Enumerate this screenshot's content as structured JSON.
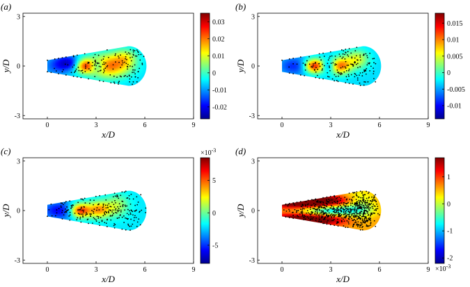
{
  "colors": {
    "jet": [
      "#00008f",
      "#0000ff",
      "#0080ff",
      "#00ffff",
      "#80ff80",
      "#ffff00",
      "#ff8000",
      "#ff0000",
      "#800000"
    ],
    "axis": "#000000",
    "points": "#000000",
    "background": "#ffffff"
  },
  "chart_data": [
    {
      "type": "heatmap",
      "panel_label": "(a)",
      "xlabel": "x/D",
      "ylabel": "y/D",
      "xticks": [
        0,
        3,
        6,
        9
      ],
      "yticks": [
        -3,
        0,
        3
      ],
      "xlim": [
        -1.5,
        9
      ],
      "ylim": [
        -3.2,
        3.2
      ],
      "domain": "cone-shaped wake region from x/D = 0 to about 6, half-width growing from about 0.35 to 1.2",
      "colorbar": {
        "ticks": [
          0.03,
          0.02,
          0.01,
          0,
          -0.01,
          -0.02
        ],
        "labels": [
          "0.03",
          "0.02",
          "0.01",
          "0",
          "-0.01",
          "-0.02"
        ],
        "range": [
          -0.027,
          0.035
        ],
        "exponent_label": ""
      },
      "field_blobs": [
        {
          "x": 3.8,
          "y": 0.0,
          "sx": 0.9,
          "sy": 0.5,
          "a": 0.026
        },
        {
          "x": 2.3,
          "y": 0.0,
          "sx": 0.4,
          "sy": 0.3,
          "a": 0.024
        },
        {
          "x": 4.8,
          "y": 0.5,
          "sx": 0.5,
          "sy": 0.4,
          "a": 0.012
        },
        {
          "x": 3.1,
          "y": 0.0,
          "sx": 0.3,
          "sy": 0.25,
          "a": -0.012
        },
        {
          "x": 1.3,
          "y": 0.2,
          "sx": 0.5,
          "sy": 0.3,
          "a": -0.014
        },
        {
          "x": 0.6,
          "y": 0.0,
          "sx": 0.6,
          "sy": 0.4,
          "a": -0.008
        }
      ],
      "field_base": -0.006,
      "point_clusters": [
        {
          "x": 3.2,
          "y": 0.0,
          "sx": 1.3,
          "sy": 0.45,
          "n": 90
        },
        {
          "x": 5.0,
          "y": 0.2,
          "sx": 0.6,
          "sy": 0.7,
          "n": 50
        }
      ]
    },
    {
      "type": "heatmap",
      "panel_label": "(b)",
      "xlabel": "x/D",
      "ylabel": "y/D",
      "xticks": [
        0,
        3,
        6,
        9
      ],
      "yticks": [
        -3,
        0,
        3
      ],
      "xlim": [
        -1.5,
        9
      ],
      "ylim": [
        -3.2,
        3.2
      ],
      "domain": "cone-shaped wake region from x/D = 0 to about 6, half-width growing from about 0.35 to 1.2",
      "colorbar": {
        "ticks": [
          0.015,
          0.01,
          0.005,
          0,
          -0.005,
          -0.01
        ],
        "labels": [
          "0.015",
          "0.01",
          "0.005",
          "0",
          "-0.005",
          "-0.01"
        ],
        "range": [
          -0.014,
          0.018
        ],
        "exponent_label": ""
      },
      "field_blobs": [
        {
          "x": 2.0,
          "y": 0.0,
          "sx": 0.45,
          "sy": 0.3,
          "a": 0.017
        },
        {
          "x": 3.6,
          "y": 0.0,
          "sx": 0.45,
          "sy": 0.35,
          "a": 0.013
        },
        {
          "x": 4.6,
          "y": 0.4,
          "sx": 0.5,
          "sy": 0.4,
          "a": 0.008
        },
        {
          "x": 2.8,
          "y": 0.0,
          "sx": 0.3,
          "sy": 0.25,
          "a": -0.006
        },
        {
          "x": 0.8,
          "y": 0.0,
          "sx": 0.7,
          "sy": 0.4,
          "a": -0.006
        }
      ],
      "field_base": -0.003,
      "point_clusters": [
        {
          "x": 3.0,
          "y": 0.0,
          "sx": 1.4,
          "sy": 0.5,
          "n": 110
        },
        {
          "x": 5.0,
          "y": 0.1,
          "sx": 0.6,
          "sy": 0.7,
          "n": 50
        }
      ]
    },
    {
      "type": "heatmap",
      "panel_label": "(c)",
      "xlabel": "x/D",
      "ylabel": "y/D",
      "xticks": [
        0,
        3,
        6,
        9
      ],
      "yticks": [
        -3,
        0,
        3
      ],
      "xlim": [
        -1.5,
        9
      ],
      "ylim": [
        -3.2,
        3.2
      ],
      "domain": "cone-shaped wake region from x/D = 0 to about 6, half-width growing from about 0.35 to 1.2",
      "colorbar": {
        "ticks": [
          0.005,
          0,
          -0.005
        ],
        "labels": [
          "5",
          "0",
          "-5"
        ],
        "range": [
          -0.0078,
          0.0085
        ],
        "exponent_label": "×10",
        "exponent_power": "-3",
        "exponent_position": "top"
      },
      "field_blobs": [
        {
          "x": 2.0,
          "y": 0.0,
          "sx": 0.45,
          "sy": 0.3,
          "a": 0.0085
        },
        {
          "x": 3.2,
          "y": 0.05,
          "sx": 0.5,
          "sy": 0.35,
          "a": 0.006
        },
        {
          "x": 4.3,
          "y": 0.3,
          "sx": 0.5,
          "sy": 0.45,
          "a": 0.003
        },
        {
          "x": 0.8,
          "y": 0.0,
          "sx": 0.8,
          "sy": 0.4,
          "a": -0.004
        }
      ],
      "field_base": -0.002,
      "point_clusters": [
        {
          "x": 2.8,
          "y": 0.0,
          "sx": 1.5,
          "sy": 0.45,
          "n": 160
        },
        {
          "x": 4.9,
          "y": 0.0,
          "sx": 0.6,
          "sy": 0.75,
          "n": 70
        }
      ]
    },
    {
      "type": "heatmap",
      "panel_label": "(d)",
      "xlabel": "x/D",
      "ylabel": "y/D",
      "xticks": [
        0,
        3,
        6,
        9
      ],
      "yticks": [
        -3,
        0,
        3
      ],
      "xlim": [
        -1.5,
        9
      ],
      "ylim": [
        -3.2,
        3.2
      ],
      "domain": "cone-shaped wake region from x/D = 0 to about 6, half-width growing from about 0.35 to 1.2",
      "colorbar": {
        "ticks": [
          0.001,
          0,
          -0.001,
          -0.002
        ],
        "labels": [
          "1",
          "0",
          "-1",
          "-2"
        ],
        "range": [
          -0.0022,
          0.0017
        ],
        "exponent_label": "×10",
        "exponent_power": "-3",
        "exponent_position": "bottom"
      },
      "field_blobs": [
        {
          "x": 1.5,
          "y": 0.55,
          "sx": 1.6,
          "sy": 0.25,
          "a": 0.0024
        },
        {
          "x": 1.5,
          "y": -0.55,
          "sx": 1.6,
          "sy": 0.25,
          "a": 0.0018
        },
        {
          "x": 3.0,
          "y": 0.0,
          "sx": 1.2,
          "sy": 0.25,
          "a": -0.0015
        },
        {
          "x": 4.8,
          "y": 0.3,
          "sx": 0.7,
          "sy": 0.6,
          "a": -0.0008
        }
      ],
      "field_base": 0.0006,
      "point_clusters": [
        {
          "x": 3.0,
          "y": 0.0,
          "sx": 1.4,
          "sy": 0.5,
          "n": 420
        },
        {
          "x": 4.9,
          "y": 0.0,
          "sx": 0.55,
          "sy": 0.7,
          "n": 260
        }
      ]
    }
  ]
}
